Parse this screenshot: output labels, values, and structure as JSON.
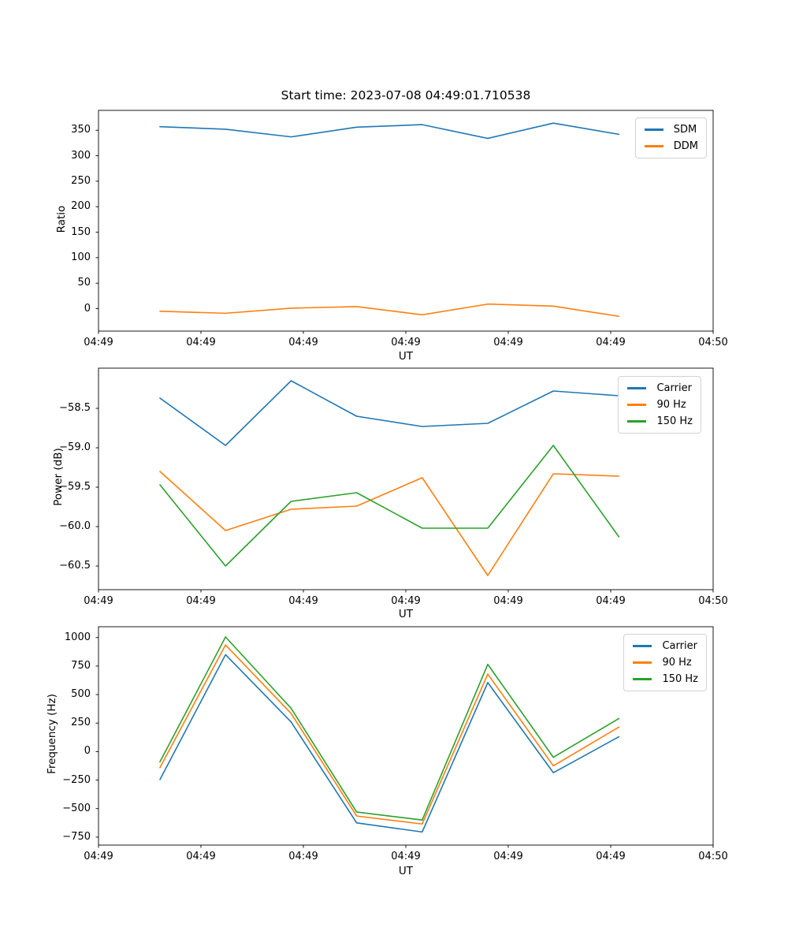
{
  "figure": {
    "title": "Start time: 2023-07-08 04:49:01.710538",
    "background": "#ffffff",
    "accent_colors": {
      "blue": "#1f77b4",
      "orange": "#ff7f0e",
      "green": "#2ca02c"
    }
  },
  "chart_data": [
    {
      "type": "line",
      "title": "Start time: 2023-07-08 04:49:01.710538",
      "xlabel": "UT",
      "ylabel": "Ratio",
      "grid": false,
      "legend_position": "upper right",
      "x_seconds": [
        6.0,
        12.4,
        18.8,
        25.2,
        31.6,
        38.0,
        44.4,
        50.8
      ],
      "xlim": [
        0,
        60
      ],
      "xticks": [
        0,
        10,
        20,
        30,
        40,
        50,
        60
      ],
      "xtick_labels": [
        "04:49",
        "04:49",
        "04:49",
        "04:49",
        "04:49",
        "04:49",
        "04:50"
      ],
      "ylim": [
        -44,
        389
      ],
      "yticks": [
        0,
        50,
        100,
        150,
        200,
        250,
        300,
        350
      ],
      "ytick_labels": [
        "0",
        "50",
        "100",
        "150",
        "200",
        "250",
        "300",
        "350"
      ],
      "series": [
        {
          "name": "SDM",
          "color": "#1f77b4",
          "values": [
            357,
            352,
            337,
            356,
            361,
            334,
            364,
            342
          ]
        },
        {
          "name": "DDM",
          "color": "#ff7f0e",
          "values": [
            -5,
            -9,
            1,
            4,
            -12,
            9,
            5,
            -15
          ]
        }
      ]
    },
    {
      "type": "line",
      "title": "",
      "xlabel": "UT",
      "ylabel": "Power (dB)",
      "grid": false,
      "legend_position": "upper right",
      "x_seconds": [
        6.0,
        12.4,
        18.8,
        25.2,
        31.6,
        38.0,
        44.4,
        50.8
      ],
      "xlim": [
        0,
        60
      ],
      "xticks": [
        0,
        10,
        20,
        30,
        40,
        50,
        60
      ],
      "xtick_labels": [
        "04:49",
        "04:49",
        "04:49",
        "04:49",
        "04:49",
        "04:49",
        "04:50"
      ],
      "ylim": [
        -60.8,
        -57.99
      ],
      "yticks": [
        -60.5,
        -60.0,
        -59.5,
        -59.0,
        -58.5
      ],
      "ytick_labels": [
        "−60.5",
        "−60.0",
        "−59.5",
        "−59.0",
        "−58.5"
      ],
      "series": [
        {
          "name": "Carrier",
          "color": "#1f77b4",
          "values": [
            -58.37,
            -58.97,
            -58.15,
            -58.6,
            -58.73,
            -58.69,
            -58.28,
            -58.34
          ]
        },
        {
          "name": "90 Hz",
          "color": "#ff7f0e",
          "values": [
            -59.3,
            -60.05,
            -59.78,
            -59.74,
            -59.38,
            -60.62,
            -59.33,
            -59.36
          ]
        },
        {
          "name": "150 Hz",
          "color": "#2ca02c",
          "values": [
            -59.47,
            -60.5,
            -59.68,
            -59.57,
            -60.02,
            -60.02,
            -58.97,
            -60.13
          ]
        }
      ]
    },
    {
      "type": "line",
      "title": "",
      "xlabel": "UT",
      "ylabel": "Frequency (Hz)",
      "grid": false,
      "legend_position": "upper right",
      "x_seconds": [
        6.0,
        12.4,
        18.8,
        25.2,
        31.6,
        38.0,
        44.4,
        50.8
      ],
      "xlim": [
        0,
        60
      ],
      "xticks": [
        0,
        10,
        20,
        30,
        40,
        50,
        60
      ],
      "xtick_labels": [
        "04:49",
        "04:49",
        "04:49",
        "04:49",
        "04:49",
        "04:49",
        "04:50"
      ],
      "ylim": [
        -820,
        1095
      ],
      "yticks": [
        -750,
        -500,
        -250,
        0,
        250,
        500,
        750,
        1000
      ],
      "ytick_labels": [
        "−750",
        "−500",
        "−250",
        "0",
        "250",
        "500",
        "750",
        "1000"
      ],
      "series": [
        {
          "name": "Carrier",
          "color": "#1f77b4",
          "values": [
            -245,
            850,
            260,
            -625,
            -705,
            605,
            -185,
            130
          ]
        },
        {
          "name": "90 Hz",
          "color": "#ff7f0e",
          "values": [
            -140,
            935,
            335,
            -565,
            -635,
            680,
            -125,
            215
          ]
        },
        {
          "name": "150 Hz",
          "color": "#2ca02c",
          "values": [
            -90,
            1005,
            380,
            -530,
            -600,
            765,
            -50,
            290
          ]
        }
      ]
    }
  ]
}
